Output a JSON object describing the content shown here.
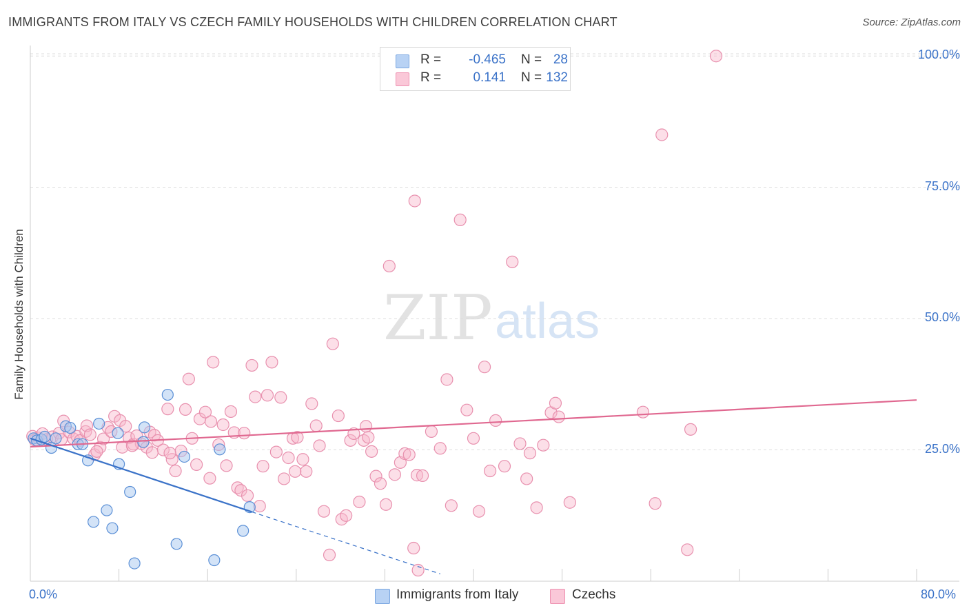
{
  "header": {
    "title": "IMMIGRANTS FROM ITALY VS CZECH FAMILY HOUSEHOLDS WITH CHILDREN CORRELATION CHART",
    "source": "Source: ZipAtlas.com"
  },
  "watermark": {
    "zip": "ZIP",
    "atlas": "atlas"
  },
  "legend": {
    "rows": [
      {
        "r_label": "R =",
        "r_value": "-0.465",
        "n_label": "N =",
        "n_value": "28",
        "color": "#a8c8f0"
      },
      {
        "r_label": "R =",
        "r_value": "0.141",
        "n_label": "N =",
        "n_value": "132",
        "color": "#f8b8cc"
      }
    ]
  },
  "bottom_legend": {
    "italy": "Immigrants from Italy",
    "czechs": "Czechs"
  },
  "chart_data": {
    "type": "scatter",
    "title": "IMMIGRANTS FROM ITALY VS CZECH FAMILY HOUSEHOLDS WITH CHILDREN CORRELATION CHART",
    "xlabel": "",
    "ylabel": "Family Households with Children",
    "xlim": [
      0,
      80
    ],
    "ylim": [
      0,
      102
    ],
    "x_tick_labels": [
      "0.0%",
      "80.0%"
    ],
    "y_tick_labels": [
      "25.0%",
      "50.0%",
      "75.0%",
      "100.0%"
    ],
    "y_ticks": [
      25,
      50,
      75,
      100
    ],
    "grid": "horizontal dashed",
    "legend_position": "top-center",
    "colors": {
      "italy": "#3a72c8",
      "czechs": "#e06890",
      "italy_fill": "#a8c8f0",
      "czechs_fill": "#f8b8cc"
    },
    "series": [
      {
        "name": "Immigrants from Italy",
        "trend": {
          "x": [
            0,
            20
          ],
          "y": [
            27.2,
            13.2
          ],
          "dashed_to": [
            37,
            1.4
          ]
        },
        "points": [
          [
            0.3,
            27.2
          ],
          [
            0.6,
            26.8
          ],
          [
            1.0,
            27.0
          ],
          [
            1.3,
            27.5
          ],
          [
            1.9,
            25.4
          ],
          [
            2.3,
            27.2
          ],
          [
            3.2,
            29.5
          ],
          [
            4.3,
            26.1
          ],
          [
            4.7,
            26.1
          ],
          [
            5.2,
            23.0
          ],
          [
            6.2,
            30.0
          ],
          [
            7.9,
            28.2
          ],
          [
            8.0,
            22.3
          ],
          [
            10.3,
            29.3
          ],
          [
            10.2,
            26.5
          ],
          [
            12.4,
            35.5
          ],
          [
            13.9,
            23.7
          ],
          [
            17.1,
            25.1
          ],
          [
            5.7,
            11.3
          ],
          [
            6.9,
            13.5
          ],
          [
            7.4,
            10.1
          ],
          [
            9.0,
            17.0
          ],
          [
            9.4,
            3.4
          ],
          [
            13.2,
            7.1
          ],
          [
            16.6,
            4.0
          ],
          [
            19.2,
            9.6
          ],
          [
            19.8,
            14.1
          ],
          [
            3.6,
            29.2
          ]
        ]
      },
      {
        "name": "Czechs",
        "trend": {
          "x": [
            0,
            80
          ],
          "y": [
            25.6,
            34.5
          ]
        },
        "points": [
          [
            0.2,
            27.6
          ],
          [
            0.4,
            26.9
          ],
          [
            0.7,
            27.3
          ],
          [
            1.1,
            28.1
          ],
          [
            1.5,
            27.0
          ],
          [
            2.0,
            27.5
          ],
          [
            2.6,
            28.2
          ],
          [
            2.8,
            27.0
          ],
          [
            3.0,
            30.5
          ],
          [
            3.5,
            28.4
          ],
          [
            3.9,
            27.1
          ],
          [
            4.2,
            27.6
          ],
          [
            4.5,
            26.8
          ],
          [
            5.0,
            28.5
          ],
          [
            5.1,
            29.6
          ],
          [
            5.4,
            27.9
          ],
          [
            5.8,
            24.1
          ],
          [
            6.3,
            25.5
          ],
          [
            6.6,
            27.1
          ],
          [
            7.0,
            29.3
          ],
          [
            7.3,
            28.5
          ],
          [
            7.6,
            31.4
          ],
          [
            8.1,
            30.6
          ],
          [
            8.3,
            25.5
          ],
          [
            8.6,
            29.5
          ],
          [
            8.9,
            27.3
          ],
          [
            9.3,
            26.1
          ],
          [
            9.6,
            27.7
          ],
          [
            10.0,
            26.2
          ],
          [
            10.5,
            25.5
          ],
          [
            10.8,
            28.4
          ],
          [
            11.2,
            27.8
          ],
          [
            11.5,
            26.8
          ],
          [
            12.0,
            25.0
          ],
          [
            12.4,
            32.8
          ],
          [
            12.8,
            23.2
          ],
          [
            13.1,
            21.0
          ],
          [
            13.6,
            24.8
          ],
          [
            14.0,
            32.7
          ],
          [
            14.3,
            38.5
          ],
          [
            14.6,
            27.2
          ],
          [
            15.0,
            22.2
          ],
          [
            15.3,
            30.9
          ],
          [
            15.8,
            32.2
          ],
          [
            16.2,
            19.6
          ],
          [
            16.5,
            41.7
          ],
          [
            17.0,
            26.0
          ],
          [
            17.4,
            29.8
          ],
          [
            17.7,
            22.0
          ],
          [
            18.1,
            32.3
          ],
          [
            18.4,
            28.3
          ],
          [
            18.7,
            17.8
          ],
          [
            19.0,
            17.3
          ],
          [
            19.3,
            28.2
          ],
          [
            19.6,
            16.3
          ],
          [
            20.0,
            41.1
          ],
          [
            20.3,
            35.1
          ],
          [
            20.7,
            14.3
          ],
          [
            21.0,
            21.9
          ],
          [
            21.4,
            35.4
          ],
          [
            21.8,
            41.7
          ],
          [
            22.2,
            24.6
          ],
          [
            22.6,
            35.0
          ],
          [
            22.9,
            19.5
          ],
          [
            23.3,
            23.5
          ],
          [
            23.7,
            27.2
          ],
          [
            24.1,
            27.4
          ],
          [
            24.6,
            23.2
          ],
          [
            24.9,
            20.9
          ],
          [
            25.4,
            33.8
          ],
          [
            25.8,
            29.6
          ],
          [
            26.1,
            25.8
          ],
          [
            26.5,
            13.3
          ],
          [
            27.0,
            5.0
          ],
          [
            27.3,
            45.2
          ],
          [
            27.8,
            31.5
          ],
          [
            28.1,
            11.8
          ],
          [
            28.5,
            12.5
          ],
          [
            28.9,
            26.8
          ],
          [
            29.2,
            28.1
          ],
          [
            29.7,
            15.1
          ],
          [
            30.1,
            26.8
          ],
          [
            30.5,
            27.4
          ],
          [
            30.8,
            24.7
          ],
          [
            31.2,
            20.0
          ],
          [
            31.6,
            18.6
          ],
          [
            32.1,
            14.6
          ],
          [
            32.4,
            60.0
          ],
          [
            32.9,
            20.3
          ],
          [
            33.4,
            22.6
          ],
          [
            33.8,
            24.3
          ],
          [
            34.2,
            24.1
          ],
          [
            34.6,
            6.3
          ],
          [
            34.7,
            72.4
          ],
          [
            34.9,
            20.2
          ],
          [
            35.0,
            2.1
          ],
          [
            35.4,
            20.1
          ],
          [
            36.2,
            28.5
          ],
          [
            37.0,
            25.3
          ],
          [
            38.0,
            14.4
          ],
          [
            38.8,
            68.8
          ],
          [
            39.4,
            32.6
          ],
          [
            40.0,
            27.2
          ],
          [
            40.5,
            13.3
          ],
          [
            41.0,
            40.8
          ],
          [
            41.5,
            21.0
          ],
          [
            42.0,
            30.6
          ],
          [
            42.8,
            21.9
          ],
          [
            43.5,
            60.8
          ],
          [
            44.2,
            26.2
          ],
          [
            44.8,
            19.5
          ],
          [
            45.1,
            24.4
          ],
          [
            45.7,
            14.0
          ],
          [
            46.3,
            25.9
          ],
          [
            47.0,
            32.1
          ],
          [
            47.4,
            33.9
          ],
          [
            47.7,
            31.3
          ],
          [
            48.7,
            15.0
          ],
          [
            55.3,
            32.2
          ],
          [
            56.4,
            14.8
          ],
          [
            57.0,
            85.0
          ],
          [
            59.3,
            6.0
          ],
          [
            59.6,
            28.9
          ],
          [
            61.9,
            100.0
          ],
          [
            37.6,
            38.4
          ],
          [
            11.0,
            24.5
          ],
          [
            23.9,
            20.9
          ],
          [
            16.3,
            30.4
          ],
          [
            30.3,
            29.5
          ],
          [
            12.6,
            24.4
          ],
          [
            9.2,
            25.8
          ],
          [
            6.0,
            24.7
          ]
        ]
      }
    ]
  }
}
